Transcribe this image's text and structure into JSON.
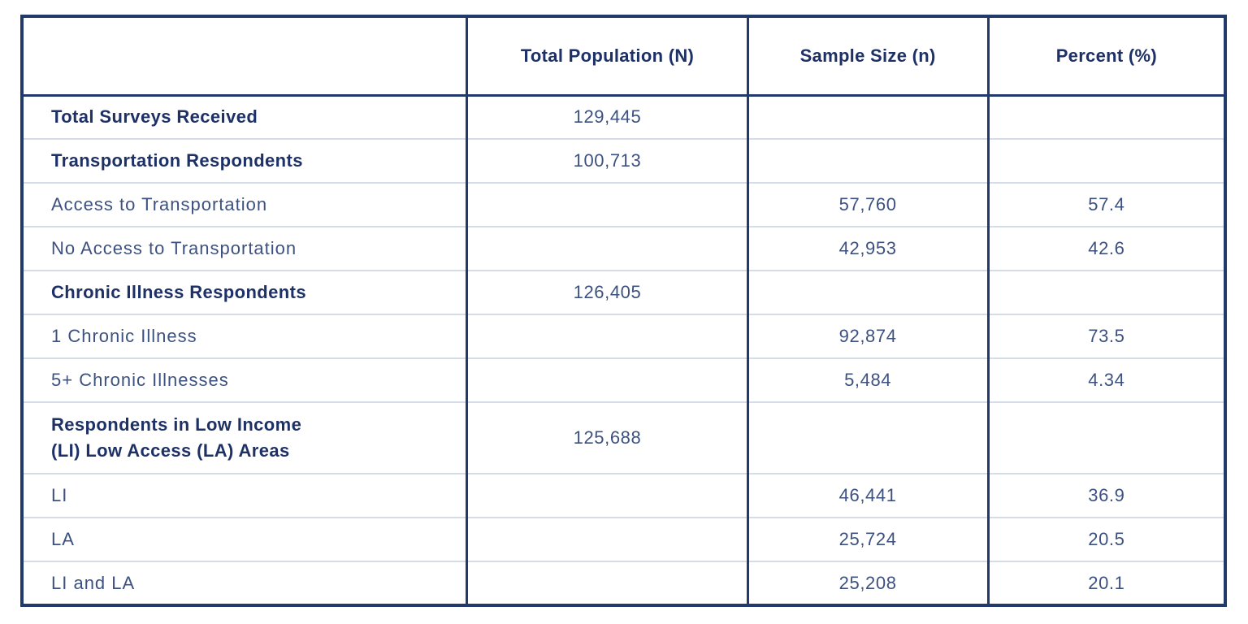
{
  "colors": {
    "border_navy": "#223a6b",
    "text_bold_navy": "#1e3166",
    "text_regular_navy": "#3d5180",
    "row_divider": "#d6dbe8",
    "background": "#ffffff"
  },
  "table": {
    "header": {
      "col0": "",
      "col1": "Total Population (N)",
      "col2": "Sample Size (n)",
      "col3": "Percent (%)"
    },
    "rows": [
      {
        "label": "Total Surveys Received",
        "total_population": "129,445",
        "sample_size": "",
        "percent": "",
        "emphasis": "bold"
      },
      {
        "label": "Transportation Respondents",
        "total_population": "100,713",
        "sample_size": "",
        "percent": "",
        "emphasis": "bold"
      },
      {
        "label": "Access to Transportation",
        "total_population": "",
        "sample_size": "57,760",
        "percent": "57.4",
        "emphasis": "regular"
      },
      {
        "label": "No Access to Transportation",
        "total_population": "",
        "sample_size": "42,953",
        "percent": "42.6",
        "emphasis": "regular"
      },
      {
        "label": "Chronic Illness Respondents",
        "total_population": "126,405",
        "sample_size": "",
        "percent": "",
        "emphasis": "bold"
      },
      {
        "label": "1 Chronic Illness",
        "total_population": "",
        "sample_size": "92,874",
        "percent": "73.5",
        "emphasis": "regular"
      },
      {
        "label": "5+ Chronic Illnesses",
        "total_population": "",
        "sample_size": "5,484",
        "percent": "4.34",
        "emphasis": "regular"
      },
      {
        "label": "Respondents in Low Income\n(LI) Low Access (LA) Areas",
        "total_population": "125,688",
        "sample_size": "",
        "percent": "",
        "emphasis": "bold"
      },
      {
        "label": "LI",
        "total_population": "",
        "sample_size": "46,441",
        "percent": "36.9",
        "emphasis": "regular"
      },
      {
        "label": "LA",
        "total_population": "",
        "sample_size": "25,724",
        "percent": "20.5",
        "emphasis": "regular"
      },
      {
        "label": "LI and LA",
        "total_population": "",
        "sample_size": "25,208",
        "percent": "20.1",
        "emphasis": "regular"
      }
    ]
  },
  "chart_data": {
    "type": "table",
    "title": "Survey respondent counts by category",
    "columns": [
      "",
      "Total Population (N)",
      "Sample Size (n)",
      "Percent (%)"
    ],
    "rows": [
      [
        "Total Surveys Received",
        129445,
        null,
        null
      ],
      [
        "Transportation Respondents",
        100713,
        null,
        null
      ],
      [
        "Access to Transportation",
        null,
        57760,
        57.4
      ],
      [
        "No Access to Transportation",
        null,
        42953,
        42.6
      ],
      [
        "Chronic Illness Respondents",
        126405,
        null,
        null
      ],
      [
        "1 Chronic Illness",
        null,
        92874,
        73.5
      ],
      [
        "5+ Chronic Illnesses",
        null,
        5484,
        4.34
      ],
      [
        "Respondents in Low Income (LI) Low Access (LA) Areas",
        125688,
        null,
        null
      ],
      [
        "LI",
        null,
        46441,
        36.9
      ],
      [
        "LA",
        null,
        25724,
        20.5
      ],
      [
        "LI and LA",
        null,
        25208,
        20.1
      ]
    ]
  }
}
